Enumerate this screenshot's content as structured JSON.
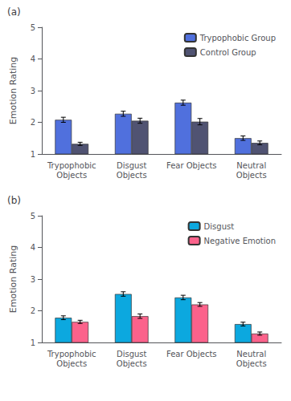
{
  "chart_data": [
    {
      "type": "bar",
      "title": "(a)",
      "categories": [
        "Trypophobic\nObjects",
        "Disgust\nObjects",
        "Fear Objects",
        "Neutral\nObjects"
      ],
      "series": [
        {
          "name": "Trypophobic Group",
          "values": [
            2.08,
            2.27,
            2.62,
            1.5
          ],
          "error": [
            0.08,
            0.08,
            0.08,
            0.07
          ]
        },
        {
          "name": "Control Group",
          "values": [
            1.32,
            2.05,
            2.02,
            1.35
          ],
          "error": [
            0.05,
            0.08,
            0.1,
            0.06
          ]
        }
      ],
      "ylabel": "Emotion Rating",
      "ylim": [
        1,
        5
      ],
      "yticks": [
        1,
        2,
        3,
        4,
        5
      ],
      "grid": false,
      "legend": "upper right"
    },
    {
      "type": "bar",
      "title": "(b)",
      "categories": [
        "Trypophobic\nObjects",
        "Disgust\nObjects",
        "Fear Objects",
        "Neutral\nObjects"
      ],
      "series": [
        {
          "name": "Disgust",
          "values": [
            1.78,
            2.53,
            2.42,
            1.58
          ],
          "error": [
            0.06,
            0.07,
            0.07,
            0.06
          ]
        },
        {
          "name": "Negative Emotion",
          "values": [
            1.65,
            1.83,
            2.2,
            1.28
          ],
          "error": [
            0.05,
            0.07,
            0.06,
            0.05
          ]
        }
      ],
      "ylabel": "Emotion Rating",
      "ylim": [
        1,
        5
      ],
      "yticks": [
        1,
        2,
        3,
        4,
        5
      ],
      "grid": false,
      "legend": "upper right"
    }
  ]
}
